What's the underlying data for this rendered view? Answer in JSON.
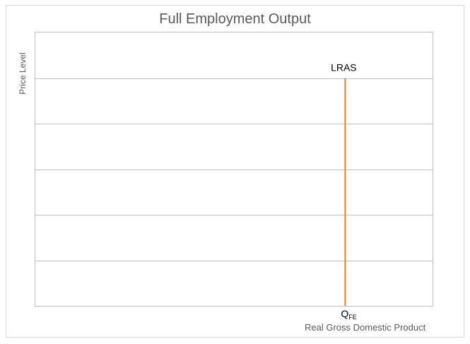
{
  "chart_data": {
    "type": "line",
    "title": "Full Employment Output",
    "xlabel": "Real Gross Domestic Product",
    "ylabel": "Price Level",
    "grid": true,
    "legend": "none",
    "ylim": [
      0,
      6
    ],
    "xlim": [
      0,
      10
    ],
    "gridline_values": [
      1,
      2,
      3,
      4,
      5
    ],
    "series": [
      {
        "name": "LRAS",
        "color": "#ed7d31",
        "x": [
          7.8,
          7.8
        ],
        "y": [
          0,
          5
        ]
      }
    ],
    "annotations": [
      {
        "text": "Q",
        "subscript": "FE",
        "x": 7.8,
        "position": "below-axis"
      }
    ]
  }
}
